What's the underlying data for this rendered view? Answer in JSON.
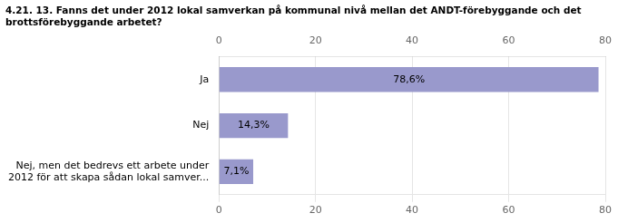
{
  "chart_data": {
    "type": "bar",
    "orientation": "horizontal",
    "title": "4.21. 13. Fanns det under 2012 lokal samverkan på kommunal nivå mellan det ANDT-förebyggande och det\nbrottsförebyggande arbetet?",
    "categories": [
      "Ja",
      "Nej",
      "Nej, men det bedrevs ett arbete under\n2012 för att skapa sådan lokal samver..."
    ],
    "values": [
      78.6,
      14.3,
      7.1
    ],
    "value_labels": [
      "78,6%",
      "14,3%",
      "7,1%"
    ],
    "data_labels": true,
    "color": "#9999cc",
    "xlim": [
      0,
      80
    ],
    "xticks": [
      0,
      20,
      40,
      60,
      80
    ],
    "grid": true
  }
}
